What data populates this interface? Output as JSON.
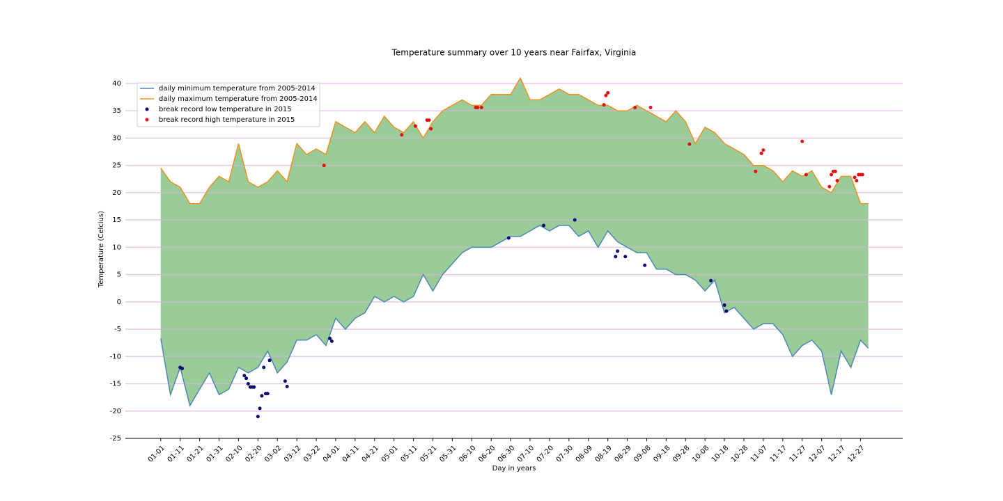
{
  "chart_data": {
    "type": "line",
    "title": "Temperature summary over 10 years near Fairfax, Virginia",
    "xlabel": "Day in years",
    "ylabel": "Temperature (Celcius)",
    "xlim": [
      -18.2,
      381.7
    ],
    "ylim": [
      -25,
      40
    ],
    "xticks": [
      {
        "value": 0,
        "label": "01-01"
      },
      {
        "value": 10,
        "label": "01-11"
      },
      {
        "value": 20,
        "label": "01-21"
      },
      {
        "value": 30,
        "label": "01-31"
      },
      {
        "value": 40,
        "label": "02-10"
      },
      {
        "value": 50,
        "label": "02-20"
      },
      {
        "value": 60,
        "label": "03-02"
      },
      {
        "value": 70,
        "label": "03-12"
      },
      {
        "value": 80,
        "label": "03-22"
      },
      {
        "value": 90,
        "label": "04-01"
      },
      {
        "value": 100,
        "label": "04-11"
      },
      {
        "value": 110,
        "label": "04-21"
      },
      {
        "value": 120,
        "label": "05-01"
      },
      {
        "value": 130,
        "label": "05-11"
      },
      {
        "value": 140,
        "label": "05-21"
      },
      {
        "value": 150,
        "label": "05-31"
      },
      {
        "value": 160,
        "label": "06-10"
      },
      {
        "value": 170,
        "label": "06-20"
      },
      {
        "value": 180,
        "label": "06-30"
      },
      {
        "value": 190,
        "label": "07-10"
      },
      {
        "value": 200,
        "label": "07-20"
      },
      {
        "value": 210,
        "label": "07-30"
      },
      {
        "value": 220,
        "label": "08-09"
      },
      {
        "value": 230,
        "label": "08-19"
      },
      {
        "value": 240,
        "label": "08-29"
      },
      {
        "value": 250,
        "label": "09-08"
      },
      {
        "value": 260,
        "label": "09-18"
      },
      {
        "value": 270,
        "label": "09-28"
      },
      {
        "value": 280,
        "label": "10-08"
      },
      {
        "value": 290,
        "label": "10-18"
      },
      {
        "value": 300,
        "label": "10-28"
      },
      {
        "value": 310,
        "label": "11-07"
      },
      {
        "value": 320,
        "label": "11-17"
      },
      {
        "value": 330,
        "label": "11-27"
      },
      {
        "value": 340,
        "label": "12-07"
      },
      {
        "value": 350,
        "label": "12-17"
      },
      {
        "value": 360,
        "label": "12-27"
      }
    ],
    "yticks": [
      -25,
      -20,
      -15,
      -10,
      -5,
      0,
      5,
      10,
      15,
      20,
      25,
      30,
      35,
      40
    ],
    "grid": true,
    "grid_color": "#dcb4dc",
    "legend": "upper left",
    "fill_color": "#99cc99",
    "x": [
      0,
      5,
      10,
      15,
      20,
      25,
      30,
      35,
      40,
      45,
      50,
      55,
      60,
      65,
      70,
      75,
      80,
      85,
      90,
      95,
      100,
      105,
      110,
      115,
      120,
      125,
      130,
      135,
      140,
      145,
      150,
      155,
      160,
      165,
      170,
      175,
      180,
      185,
      190,
      195,
      200,
      205,
      210,
      215,
      220,
      225,
      230,
      235,
      240,
      245,
      250,
      255,
      260,
      265,
      270,
      275,
      280,
      285,
      290,
      295,
      300,
      305,
      310,
      315,
      320,
      325,
      330,
      335,
      340,
      345,
      350,
      355,
      360,
      364
    ],
    "series": [
      {
        "name": "daily minimum temperature from 2005-2014",
        "type": "line",
        "color": "#4f86b8",
        "values": [
          -6.7,
          -17,
          -12,
          -19,
          -16,
          -13,
          -17,
          -16,
          -12,
          -13,
          -12,
          -9,
          -13,
          -11,
          -7,
          -7,
          -6,
          -8,
          -3,
          -5,
          -3,
          -2,
          1,
          0,
          1,
          0,
          1,
          5,
          2,
          5,
          7,
          9,
          10,
          10,
          10,
          11,
          12,
          12,
          13,
          14,
          13,
          14,
          14,
          12,
          13,
          10,
          13,
          11,
          10,
          9,
          9,
          6,
          6,
          5,
          5,
          4,
          2,
          4,
          -2,
          -1,
          -3,
          -5,
          -4,
          -4,
          -6,
          -10,
          -8,
          -7,
          -9,
          -17,
          -9,
          -12,
          -7,
          -8.5
        ]
      },
      {
        "name": "daily maximum temperature from 2005-2014",
        "type": "line",
        "color": "#f0901e",
        "values": [
          24.5,
          22,
          21,
          18,
          18,
          21,
          23,
          22,
          29,
          22,
          21,
          22,
          24,
          22,
          29,
          27,
          28,
          27,
          33,
          32,
          31,
          33,
          31,
          34,
          32,
          31,
          33,
          30,
          33,
          35,
          36,
          37,
          36,
          36,
          38,
          38,
          38,
          41,
          37,
          37,
          38,
          39,
          38,
          38,
          37,
          36,
          36,
          35,
          35,
          36,
          35,
          34,
          33,
          35,
          33,
          29,
          32,
          31,
          29,
          28,
          27,
          25,
          25,
          24,
          22,
          24,
          23,
          24,
          21,
          20,
          23,
          23,
          18,
          18
        ]
      },
      {
        "name": "break record low temperature in 2015",
        "type": "scatter",
        "color": "#0a0a6e",
        "x": [
          10,
          11,
          43,
          44,
          45,
          46,
          47,
          48,
          50,
          51,
          52,
          53,
          54,
          55,
          56,
          64,
          65,
          87,
          88,
          179,
          197,
          213,
          234,
          235,
          239,
          249,
          283,
          290,
          291
        ],
        "values": [
          -12,
          -12.2,
          -13.5,
          -14,
          -15,
          -15.6,
          -15.6,
          -15.6,
          -21,
          -19.5,
          -17.2,
          -12,
          -16.8,
          -16.8,
          -10.7,
          -14.5,
          -15.5,
          -6.7,
          -7.2,
          11.7,
          14,
          15,
          8.3,
          9.3,
          8.3,
          6.7,
          3.9,
          -0.6,
          -1.7
        ]
      },
      {
        "name": "break record high temperature in 2015",
        "type": "scatter",
        "color": "#e01010",
        "x": [
          84,
          124,
          131,
          137,
          138,
          139,
          162,
          163,
          165,
          228,
          229,
          230,
          244,
          252,
          272,
          306,
          309,
          310,
          330,
          332,
          344,
          345,
          346,
          347,
          348,
          357,
          358,
          359,
          360,
          361
        ],
        "values": [
          25,
          30.6,
          32.2,
          33.3,
          33.3,
          31.7,
          35.6,
          35.6,
          35.6,
          36.1,
          37.8,
          38.3,
          35.6,
          35.6,
          28.9,
          23.9,
          27.2,
          27.8,
          29.4,
          23.3,
          21.1,
          23.3,
          23.9,
          23.9,
          22.2,
          22.8,
          22.2,
          23.3,
          23.3,
          23.3
        ]
      }
    ]
  }
}
